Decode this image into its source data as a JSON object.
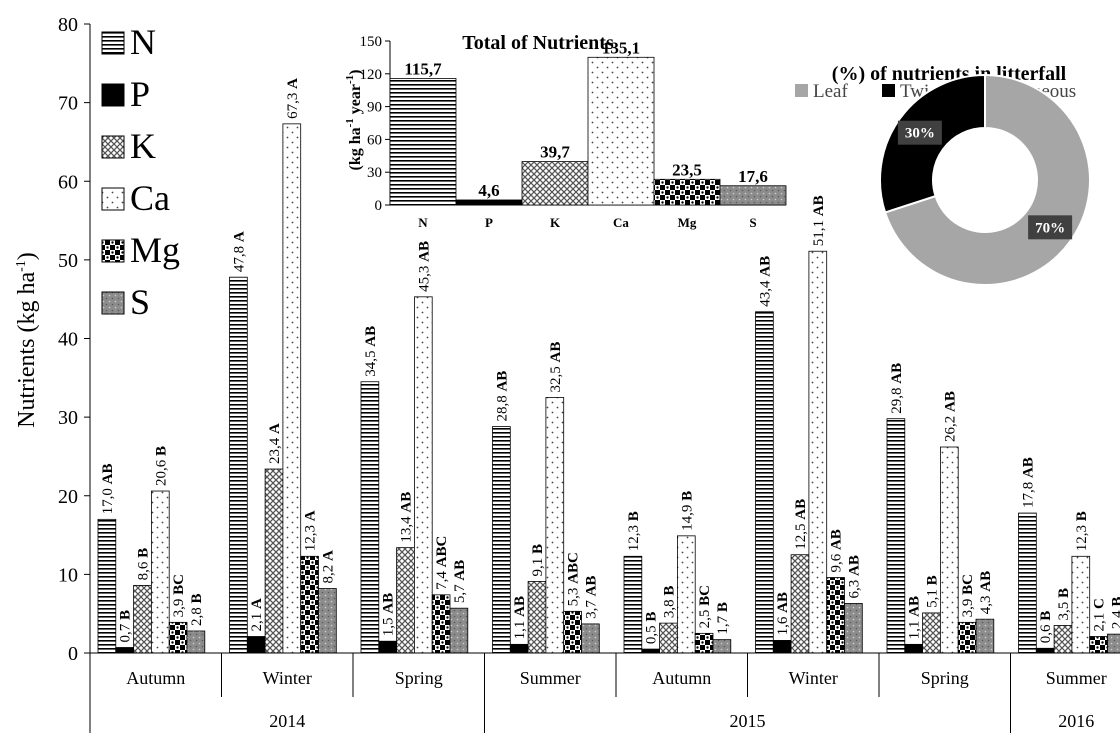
{
  "chart_data": [
    {
      "type": "bar",
      "ylabel_text": "Nutrients (kg ha",
      "ylabel_sup": "-1",
      "ylabel_close": ")",
      "ylim": [
        0,
        80
      ],
      "yticks": [
        "0",
        "10",
        "20",
        "30",
        "40",
        "50",
        "60",
        "70",
        "80"
      ],
      "grid": false,
      "legend_position": "top-left",
      "years": [
        {
          "label": "2014",
          "season_count": 3
        },
        {
          "label": "2015",
          "season_count": 4
        },
        {
          "label": "2016",
          "season_count": 1
        }
      ],
      "categories": [
        "Autumn",
        "Winter",
        "Spring",
        "Summer",
        "Autumn",
        "Winter",
        "Spring",
        "Summer"
      ],
      "series": [
        {
          "name": "N",
          "pattern": "hlines",
          "values": [
            17.0,
            47.8,
            34.5,
            28.8,
            12.3,
            43.4,
            29.8,
            17.8
          ],
          "labels": [
            [
              "17,0",
              "AB"
            ],
            [
              "47,8",
              "A"
            ],
            [
              "34,5",
              "AB"
            ],
            [
              "28,8",
              "AB"
            ],
            [
              "12,3",
              "B"
            ],
            [
              "43,4",
              "AB"
            ],
            [
              "29,8",
              "AB"
            ],
            [
              "17,8",
              "AB"
            ]
          ]
        },
        {
          "name": "P",
          "pattern": "solid",
          "values": [
            0.7,
            2.1,
            1.5,
            1.1,
            0.5,
            1.6,
            1.1,
            0.6
          ],
          "labels": [
            [
              "0,7",
              "B"
            ],
            [
              "2,1",
              "A"
            ],
            [
              "1,5",
              "AB"
            ],
            [
              "1,1",
              "AB"
            ],
            [
              "0,5",
              "B"
            ],
            [
              "1,6",
              "AB"
            ],
            [
              "1,1",
              "AB"
            ],
            [
              "0,6",
              "B"
            ]
          ]
        },
        {
          "name": "K",
          "pattern": "cross",
          "values": [
            8.6,
            23.4,
            13.4,
            9.1,
            3.8,
            12.5,
            5.1,
            3.5
          ],
          "labels": [
            [
              "8,6",
              "B"
            ],
            [
              "23,4",
              "A"
            ],
            [
              "13,4",
              "AB"
            ],
            [
              "9,1",
              "B"
            ],
            [
              "3,8",
              "B"
            ],
            [
              "12,5",
              "AB"
            ],
            [
              "5,1",
              "B"
            ],
            [
              "3,5",
              "B"
            ]
          ]
        },
        {
          "name": "Ca",
          "pattern": "dots",
          "values": [
            20.6,
            67.3,
            45.3,
            32.5,
            14.9,
            51.1,
            26.2,
            12.3
          ],
          "labels": [
            [
              "20,6",
              "B"
            ],
            [
              "67,3",
              "A"
            ],
            [
              "45,3",
              "AB"
            ],
            [
              "32,5",
              "AB"
            ],
            [
              "14,9",
              "B"
            ],
            [
              "51,1",
              "AB"
            ],
            [
              "26,2",
              "AB"
            ],
            [
              "12,3",
              "B"
            ]
          ]
        },
        {
          "name": "Mg",
          "pattern": "checker",
          "values": [
            3.9,
            12.3,
            7.4,
            5.3,
            2.5,
            9.6,
            3.9,
            2.1
          ],
          "labels": [
            [
              "3,9",
              "BC"
            ],
            [
              "12,3",
              "A"
            ],
            [
              "7,4",
              "ABC"
            ],
            [
              "5,3",
              "ABC"
            ],
            [
              "2,5",
              "BC"
            ],
            [
              "9,6",
              "AB"
            ],
            [
              "3,9",
              "BC"
            ],
            [
              "2,1",
              "C"
            ]
          ]
        },
        {
          "name": "S",
          "pattern": "speckle",
          "values": [
            2.8,
            8.2,
            5.7,
            3.7,
            1.7,
            6.3,
            4.3,
            2.4
          ],
          "labels": [
            [
              "2,8",
              "B"
            ],
            [
              "8,2",
              "A"
            ],
            [
              "5,7",
              "AB"
            ],
            [
              "3,7",
              "AB"
            ],
            [
              "1,7",
              "B"
            ],
            [
              "6,3",
              "AB"
            ],
            [
              "4,3",
              "AB"
            ],
            [
              "2,4",
              "B"
            ]
          ]
        }
      ]
    },
    {
      "type": "bar",
      "title": "Total of Nutrients",
      "ylabel_a": "(kg ha",
      "ylabel_sup1": "-1",
      "ylabel_b": " year",
      "ylabel_sup2": "-1",
      "ylabel_c": ")",
      "ylim": [
        0,
        150
      ],
      "yticks": [
        "0",
        "30",
        "60",
        "90",
        "120",
        "150"
      ],
      "categories": [
        "N",
        "P",
        "K",
        "Ca",
        "Mg",
        "S"
      ],
      "patterns": [
        "hlines",
        "solid",
        "cross",
        "dots",
        "checker",
        "speckle"
      ],
      "values": [
        115.7,
        4.6,
        39.7,
        135.1,
        23.5,
        17.6
      ],
      "value_labels": [
        "115,7",
        "4,6",
        "39,7",
        "135,1",
        "23,5",
        "17,6"
      ]
    },
    {
      "type": "pie",
      "title": "(%) of nutrients in litterfall",
      "legend": [
        "Leaf",
        "Twigs + Miscellaneous"
      ],
      "values": [
        70,
        30
      ],
      "value_labels": [
        "70%",
        "30%"
      ],
      "colors": [
        "#a6a6a6",
        "#000000"
      ]
    }
  ]
}
